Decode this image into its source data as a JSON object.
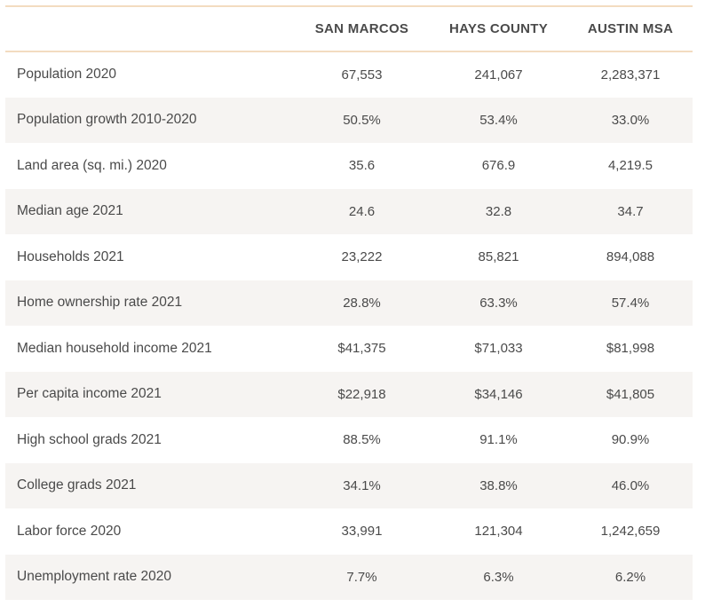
{
  "table": {
    "columns": [
      "",
      "SAN MARCOS",
      "HAYS COUNTY",
      "AUSTIN MSA"
    ],
    "rows": [
      [
        "Population 2020",
        "67,553",
        "241,067",
        "2,283,371"
      ],
      [
        "Population growth 2010-2020",
        "50.5%",
        "53.4%",
        "33.0%"
      ],
      [
        "Land area (sq. mi.) 2020",
        "35.6",
        "676.9",
        "4,219.5"
      ],
      [
        "Median age 2021",
        "24.6",
        "32.8",
        "34.7"
      ],
      [
        "Households 2021",
        "23,222",
        "85,821",
        "894,088"
      ],
      [
        "Home ownership rate 2021",
        "28.8%",
        "63.3%",
        "57.4%"
      ],
      [
        "Median household income 2021",
        "$41,375",
        "$71,033",
        "$81,998"
      ],
      [
        "Per capita income 2021",
        "$22,918",
        "$34,146",
        "$41,805"
      ],
      [
        "High school grads 2021",
        "88.5%",
        "91.1%",
        "90.9%"
      ],
      [
        "College grads 2021",
        "34.1%",
        "38.8%",
        "46.0%"
      ],
      [
        "Labor force 2020",
        "33,991",
        "121,304",
        "1,242,659"
      ],
      [
        "Unemployment rate 2020",
        "7.7%",
        "6.3%",
        "6.2%"
      ]
    ]
  },
  "colors": {
    "header_rule": "#f3dcc0",
    "stripe": "#f6f4f2",
    "text": "#4a4a4a"
  }
}
